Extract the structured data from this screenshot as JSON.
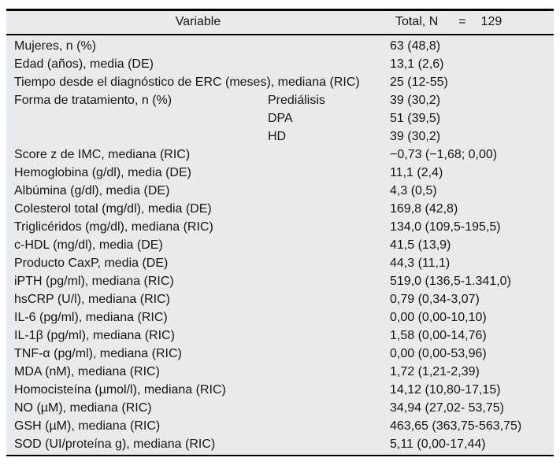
{
  "colors": {
    "table_bg": "#e7ebeb",
    "rule": "#000000",
    "text": "#151515"
  },
  "header": {
    "variable_label": "Variable",
    "total_label_name": "Total, N",
    "total_label_eq": "=",
    "total_label_value": "129"
  },
  "rows": [
    {
      "variable": "Mujeres, n (%)",
      "sub": "",
      "value": "63 (48,8)"
    },
    {
      "variable": "Edad (años), media (DE)",
      "sub": "",
      "value": "13,1 (2,6)"
    },
    {
      "variable": "Tiempo desde el diagnóstico de ERC (meses), mediana (RIC)",
      "sub": "",
      "value": "25 (12-55)"
    },
    {
      "variable": "Forma de tratamiento, n (%)",
      "sub": "Prediálisis",
      "value": "39 (30,2)"
    },
    {
      "variable": "",
      "sub": "DPA",
      "value": "51 (39,5)"
    },
    {
      "variable": "",
      "sub": "HD",
      "value": "39 (30,2)"
    },
    {
      "variable": "Score z de IMC, mediana (RIC)",
      "sub": "",
      "value": "−0,73 (−1,68; 0,00)"
    },
    {
      "variable": "Hemoglobina (g/dl), media (DE)",
      "sub": "",
      "value": "11,1 (2,4)"
    },
    {
      "variable": "Albúmina (g/dl), media (DE)",
      "sub": "",
      "value": "4,3 (0,5)"
    },
    {
      "variable": "Colesterol total (mg/dl), media (DE)",
      "sub": "",
      "value": "169,8 (42,8)"
    },
    {
      "variable": "Triglicéridos (mg/dl), mediana (RIC)",
      "sub": "",
      "value": "134,0 (109,5-195,5)"
    },
    {
      "variable": "c-HDL (mg/dl), media (DE)",
      "sub": "",
      "value": "41,5 (13,9)"
    },
    {
      "variable": "Producto CaxP, media (DE)",
      "sub": "",
      "value": "44,3 (11,1)"
    },
    {
      "variable": "iPTH (pg/ml), mediana (RIC)",
      "sub": "",
      "value": "519,0 (136,5-1.341,0)"
    },
    {
      "variable": "hsCRP (U/l), mediana (RIC)",
      "sub": "",
      "value": "0,79 (0,34-3,07)"
    },
    {
      "variable": "IL-6 (pg/ml), mediana (RIC)",
      "sub": "",
      "value": "0,00 (0,00-10,10)"
    },
    {
      "variable": "IL-1β (pg/ml), mediana (RIC)",
      "sub": "",
      "value": "1,58 (0,00-14,76)"
    },
    {
      "variable": "TNF-α (pg/ml), mediana (RIC)",
      "sub": "",
      "value": "0,00 (0,00-53,96)"
    },
    {
      "variable": "MDA (nM), mediana (RIC)",
      "sub": "",
      "value": "1,72 (1,21-2,39)"
    },
    {
      "variable": "Homocisteína (µmol/l), mediana (RIC)",
      "sub": "",
      "value": "14,12 (10,80-17,15)"
    },
    {
      "variable": "NO (µM), mediana (RIC)",
      "sub": "",
      "value": "34,94 (27,02- 53,75)"
    },
    {
      "variable": "GSH (µM), mediana (RIC)",
      "sub": "",
      "value": "463,65 (363,75-563,75)"
    },
    {
      "variable": "SOD (UI/proteína g), mediana (RIC)",
      "sub": "",
      "value": "5,11 (0,00-17,44)"
    }
  ]
}
